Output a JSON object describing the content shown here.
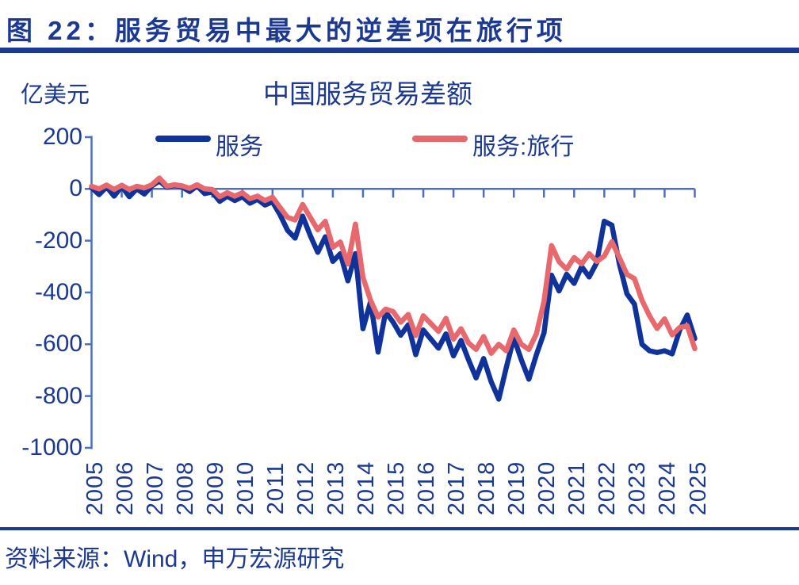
{
  "header": {
    "title": "图 22：服务贸易中最大的逆差项在旅行项"
  },
  "chart": {
    "unit_label": "亿美元",
    "title": "中国服务贸易差额"
  },
  "source": {
    "text": "资料来源：Wind，申万宏源研究"
  },
  "colors": {
    "navy": "#1b3893",
    "series_blue": "#10339b",
    "series_red": "#e8696d",
    "axis": "#4a70c0"
  },
  "chart_data": {
    "type": "line",
    "title": "中国服务贸易差额",
    "xlabel": "",
    "ylabel": "亿美元",
    "ylim": [
      -1000,
      200
    ],
    "grid": false,
    "legend_position": "top",
    "yticks": [
      200,
      0,
      -200,
      -400,
      -600,
      -800,
      -1000
    ],
    "xticks": [
      2005,
      2006,
      2007,
      2008,
      2009,
      2010,
      2011,
      2012,
      2013,
      2014,
      2015,
      2016,
      2017,
      2018,
      2019,
      2020,
      2021,
      2022,
      2023,
      2024,
      2025
    ],
    "x": [
      2005,
      2005.25,
      2005.5,
      2005.75,
      2006,
      2006.25,
      2006.5,
      2006.75,
      2007,
      2007.25,
      2007.5,
      2007.75,
      2008,
      2008.25,
      2008.5,
      2008.75,
      2009,
      2009.25,
      2009.5,
      2009.75,
      2010,
      2010.25,
      2010.5,
      2010.75,
      2011,
      2011.25,
      2011.5,
      2011.75,
      2012,
      2012.25,
      2012.5,
      2012.75,
      2013,
      2013.25,
      2013.5,
      2013.75,
      2014,
      2014.25,
      2014.5,
      2014.75,
      2015,
      2015.25,
      2015.5,
      2015.75,
      2016,
      2016.25,
      2016.5,
      2016.75,
      2017,
      2017.25,
      2017.5,
      2017.75,
      2018,
      2018.25,
      2018.5,
      2018.75,
      2019,
      2019.25,
      2019.5,
      2019.75,
      2020,
      2020.25,
      2020.5,
      2020.75,
      2021,
      2021.25,
      2021.5,
      2021.75,
      2022,
      2022.25,
      2022.5,
      2022.75,
      2023,
      2023.25,
      2023.5,
      2023.75,
      2024,
      2024.25,
      2024.5,
      2024.75,
      2025
    ],
    "series": [
      {
        "name": "服务",
        "color": "#10339b",
        "values": [
          5,
          -22,
          8,
          -28,
          10,
          -30,
          0,
          -20,
          12,
          30,
          6,
          14,
          8,
          -10,
          12,
          -18,
          -12,
          -48,
          -28,
          -45,
          -30,
          -55,
          -40,
          -62,
          -50,
          -100,
          -160,
          -190,
          -105,
          -180,
          -245,
          -185,
          -280,
          -250,
          -355,
          -250,
          -540,
          -435,
          -630,
          -475,
          -515,
          -565,
          -525,
          -640,
          -545,
          -580,
          -615,
          -560,
          -645,
          -585,
          -660,
          -730,
          -655,
          -745,
          -812,
          -690,
          -575,
          -660,
          -735,
          -640,
          -556,
          -333,
          -394,
          -330,
          -365,
          -300,
          -340,
          -285,
          -125,
          -140,
          -290,
          -405,
          -445,
          -600,
          -625,
          -632,
          -625,
          -637,
          -545,
          -487,
          -578
        ]
      },
      {
        "name": "服务:旅行",
        "color": "#e8696d",
        "values": [
          10,
          0,
          15,
          -2,
          14,
          -2,
          10,
          4,
          16,
          42,
          10,
          16,
          12,
          2,
          16,
          0,
          -2,
          -30,
          -15,
          -28,
          -15,
          -38,
          -28,
          -45,
          -32,
          -72,
          -110,
          -120,
          -60,
          -110,
          -158,
          -125,
          -225,
          -205,
          -290,
          -136,
          -342,
          -430,
          -495,
          -464,
          -474,
          -515,
          -485,
          -566,
          -490,
          -520,
          -550,
          -500,
          -580,
          -540,
          -595,
          -620,
          -570,
          -635,
          -600,
          -625,
          -545,
          -600,
          -620,
          -560,
          -434,
          -219,
          -281,
          -310,
          -265,
          -290,
          -250,
          -280,
          -260,
          -204,
          -265,
          -330,
          -347,
          -430,
          -490,
          -539,
          -502,
          -564,
          -535,
          -529,
          -617
        ]
      }
    ]
  }
}
